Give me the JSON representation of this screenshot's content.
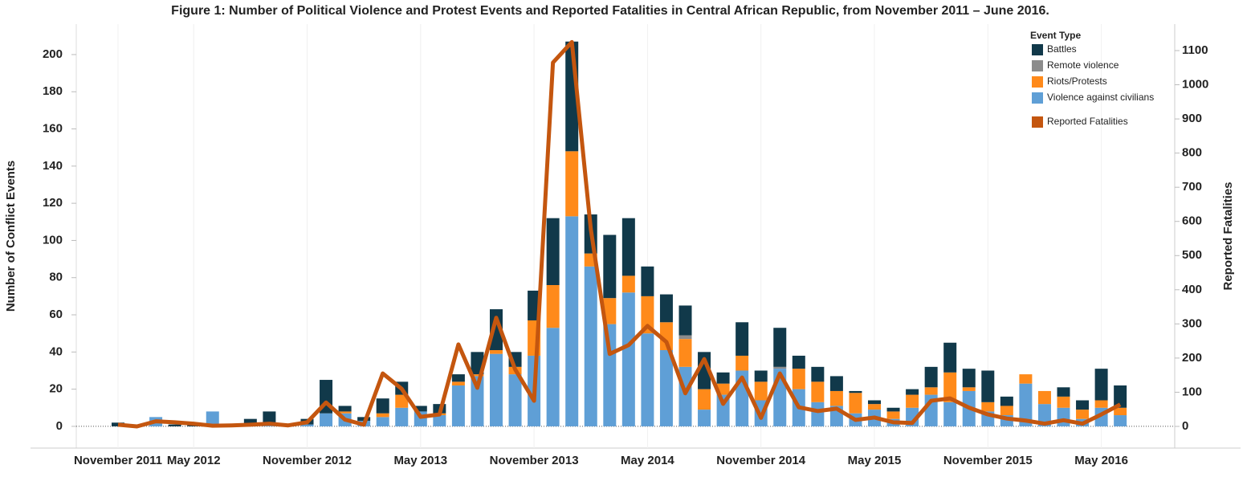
{
  "chart_data": {
    "type": "bar",
    "title": "Figure 1: Number of Political Violence and Protest Events and Reported Fatalities in Central African Republic, from  November 2011 – June 2016.",
    "ylabel": "Number of Conflict Events",
    "y2label": "Reported Fatalities",
    "legend_title": "Event Type",
    "legend": "top-right",
    "stacked": true,
    "categories": [
      "November 2011",
      null,
      null,
      null,
      "May 2012",
      null,
      null,
      null,
      null,
      null,
      "November 2012",
      null,
      null,
      null,
      null,
      null,
      "May 2013",
      null,
      null,
      null,
      null,
      null,
      "November 2013",
      null,
      null,
      null,
      null,
      null,
      "May 2014",
      null,
      null,
      null,
      null,
      null,
      "November 2014",
      null,
      null,
      null,
      null,
      null,
      "May 2015",
      null,
      null,
      null,
      null,
      null,
      "November 2015",
      null,
      null,
      null,
      null,
      null,
      "May 2016",
      null
    ],
    "series": [
      {
        "name": "Battles",
        "color": "#11394a",
        "values": [
          2,
          0,
          0,
          1,
          2,
          0,
          0,
          4,
          7,
          0,
          3,
          18,
          3,
          2,
          8,
          7,
          3,
          5,
          4,
          12,
          22,
          8,
          16,
          36,
          59,
          21,
          34,
          31,
          16,
          15,
          16,
          20,
          6,
          18,
          6,
          21,
          7,
          8,
          8,
          1,
          2,
          2,
          3,
          11,
          16,
          10,
          17,
          5,
          0,
          0,
          5,
          5,
          17,
          12
        ]
      },
      {
        "name": "Remote violence",
        "color": "#8c8c8c",
        "values": [
          0,
          0,
          0,
          0,
          0,
          0,
          0,
          0,
          0,
          0,
          0,
          0,
          0,
          0,
          0,
          0,
          0,
          0,
          0,
          0,
          0,
          0,
          0,
          0,
          0,
          0,
          0,
          0,
          0,
          0,
          2,
          0,
          0,
          0,
          0,
          1,
          0,
          0,
          0,
          0,
          0,
          0,
          0,
          0,
          0,
          0,
          0,
          0,
          0,
          0,
          0,
          0,
          0,
          0
        ]
      },
      {
        "name": "Riots/Protests",
        "color": "#ff8a1a",
        "values": [
          0,
          0,
          0,
          0,
          0,
          0,
          0,
          0,
          0,
          0,
          0,
          0,
          1,
          0,
          2,
          7,
          0,
          1,
          2,
          1,
          2,
          4,
          19,
          23,
          35,
          7,
          14,
          9,
          20,
          15,
          15,
          11,
          6,
          8,
          10,
          0,
          11,
          11,
          8,
          11,
          3,
          4,
          7,
          4,
          16,
          2,
          5,
          5,
          5,
          7,
          6,
          5,
          4,
          4
        ]
      },
      {
        "name": "Violence against civilians",
        "color": "#5f9fd6",
        "values": [
          0,
          0,
          5,
          0,
          0,
          8,
          0,
          0,
          1,
          0,
          1,
          7,
          7,
          3,
          5,
          10,
          8,
          6,
          22,
          27,
          39,
          28,
          38,
          53,
          113,
          86,
          55,
          72,
          50,
          41,
          32,
          9,
          17,
          30,
          14,
          31,
          20,
          13,
          11,
          7,
          9,
          4,
          10,
          17,
          13,
          19,
          8,
          6,
          23,
          12,
          10,
          4,
          10,
          6
        ]
      },
      {
        "name": "Reported Fatalities",
        "type": "line",
        "axis": "y2",
        "color": "#c4560f",
        "values": [
          5,
          0,
          15,
          12,
          8,
          2,
          3,
          5,
          8,
          3,
          12,
          70,
          20,
          5,
          155,
          110,
          28,
          35,
          240,
          113,
          318,
          167,
          75,
          1065,
          1125,
          578,
          212,
          238,
          294,
          247,
          97,
          197,
          66,
          143,
          25,
          155,
          56,
          45,
          52,
          19,
          26,
          12,
          10,
          75,
          82,
          55,
          35,
          23,
          17,
          8,
          18,
          8,
          35,
          64
        ]
      }
    ],
    "ylim": [
      -11.7,
      216.4
    ],
    "yticks": [
      0,
      20,
      40,
      60,
      80,
      100,
      120,
      140,
      160,
      180,
      200
    ],
    "y2lim": [
      -63.5,
      1177.6
    ],
    "y2ticks": [
      0,
      100,
      200,
      300,
      400,
      500,
      600,
      700,
      800,
      900,
      1000,
      1100
    ]
  }
}
